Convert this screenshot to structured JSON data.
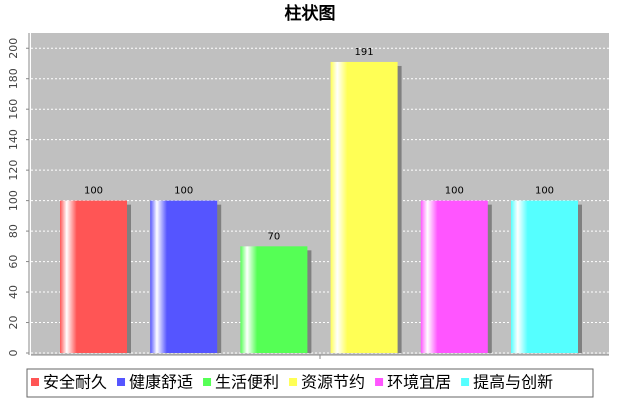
{
  "chart_data": {
    "type": "bar",
    "title": "柱状图",
    "categories": [
      null
    ],
    "series": [
      {
        "name": "安全耐久",
        "color": "#ff5555",
        "values": [
          100
        ]
      },
      {
        "name": "健康舒适",
        "color": "#5555ff",
        "values": [
          100
        ]
      },
      {
        "name": "生活便利",
        "color": "#55ff55",
        "values": [
          70
        ]
      },
      {
        "name": "资源节约",
        "color": "#ffff55",
        "values": [
          191
        ]
      },
      {
        "name": "环境宜居",
        "color": "#ff55ff",
        "values": [
          100
        ]
      },
      {
        "name": "提高与创新",
        "color": "#55ffff",
        "values": [
          100
        ]
      }
    ],
    "ylim": [
      0,
      210
    ],
    "yticks": [
      0,
      20,
      40,
      60,
      80,
      100,
      120,
      140,
      160,
      180,
      200
    ],
    "grid": true,
    "legend": "bottom"
  }
}
